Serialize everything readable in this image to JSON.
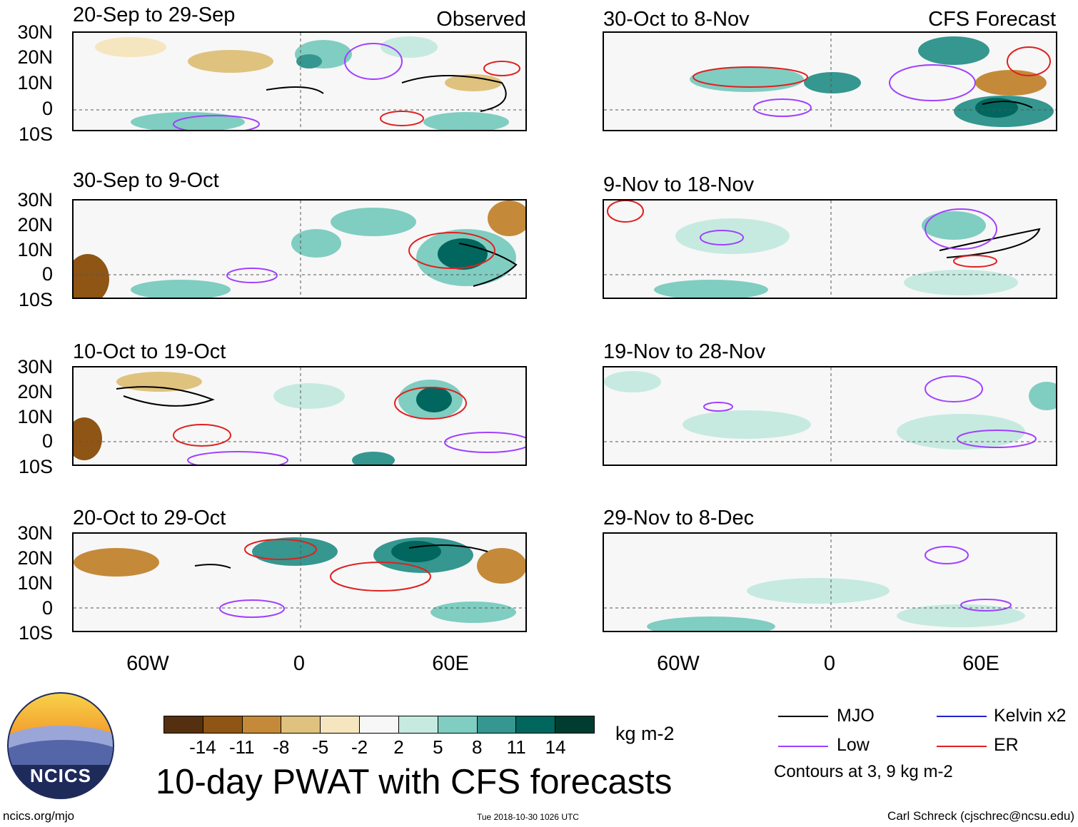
{
  "panels": [
    {
      "title": "20-Sep to 29-Sep",
      "corner": "Observed"
    },
    {
      "title": "30-Sep to 9-Oct",
      "corner": ""
    },
    {
      "title": "10-Oct to 19-Oct",
      "corner": ""
    },
    {
      "title": "20-Oct to 29-Oct",
      "corner": ""
    },
    {
      "title": "30-Oct to 8-Nov",
      "corner": "CFS Forecast"
    },
    {
      "title": "9-Nov to 18-Nov",
      "corner": ""
    },
    {
      "title": "19-Nov to 28-Nov",
      "corner": ""
    },
    {
      "title": "29-Nov to 8-Dec",
      "corner": ""
    }
  ],
  "lat_labels": [
    "30N",
    "20N",
    "10N",
    "0",
    "10S"
  ],
  "lon_labels": [
    "60W",
    "0",
    "60E"
  ],
  "colorbar": {
    "colors": [
      "#553010",
      "#8e5515",
      "#c48a3a",
      "#dfc27e",
      "#f5e6c0",
      "#f7f7f7",
      "#c6eae0",
      "#80cdc1",
      "#35978f",
      "#01665e",
      "#003c30"
    ],
    "labels": [
      "-14",
      "-11",
      "-8",
      "-5",
      "-2",
      "2",
      "5",
      "8",
      "11",
      "14"
    ],
    "units": "kg m-2"
  },
  "title": "10-day PWAT with CFS forecasts",
  "legend": {
    "items": [
      {
        "label": "MJO",
        "color": "#000000"
      },
      {
        "label": "Kelvin x2",
        "color": "#2222cc"
      },
      {
        "label": "Low",
        "color": "#a040ff"
      },
      {
        "label": "ER",
        "color": "#e02020"
      }
    ],
    "note": "Contours at 3, 9 kg m-2"
  },
  "logo_text": "NCICS",
  "footer": {
    "website": "ncics.org/mjo",
    "timestamp": "Tue 2018-10-30 1026 UTC",
    "author": "Carl Schreck (cjschrec@ncsu.edu)"
  }
}
